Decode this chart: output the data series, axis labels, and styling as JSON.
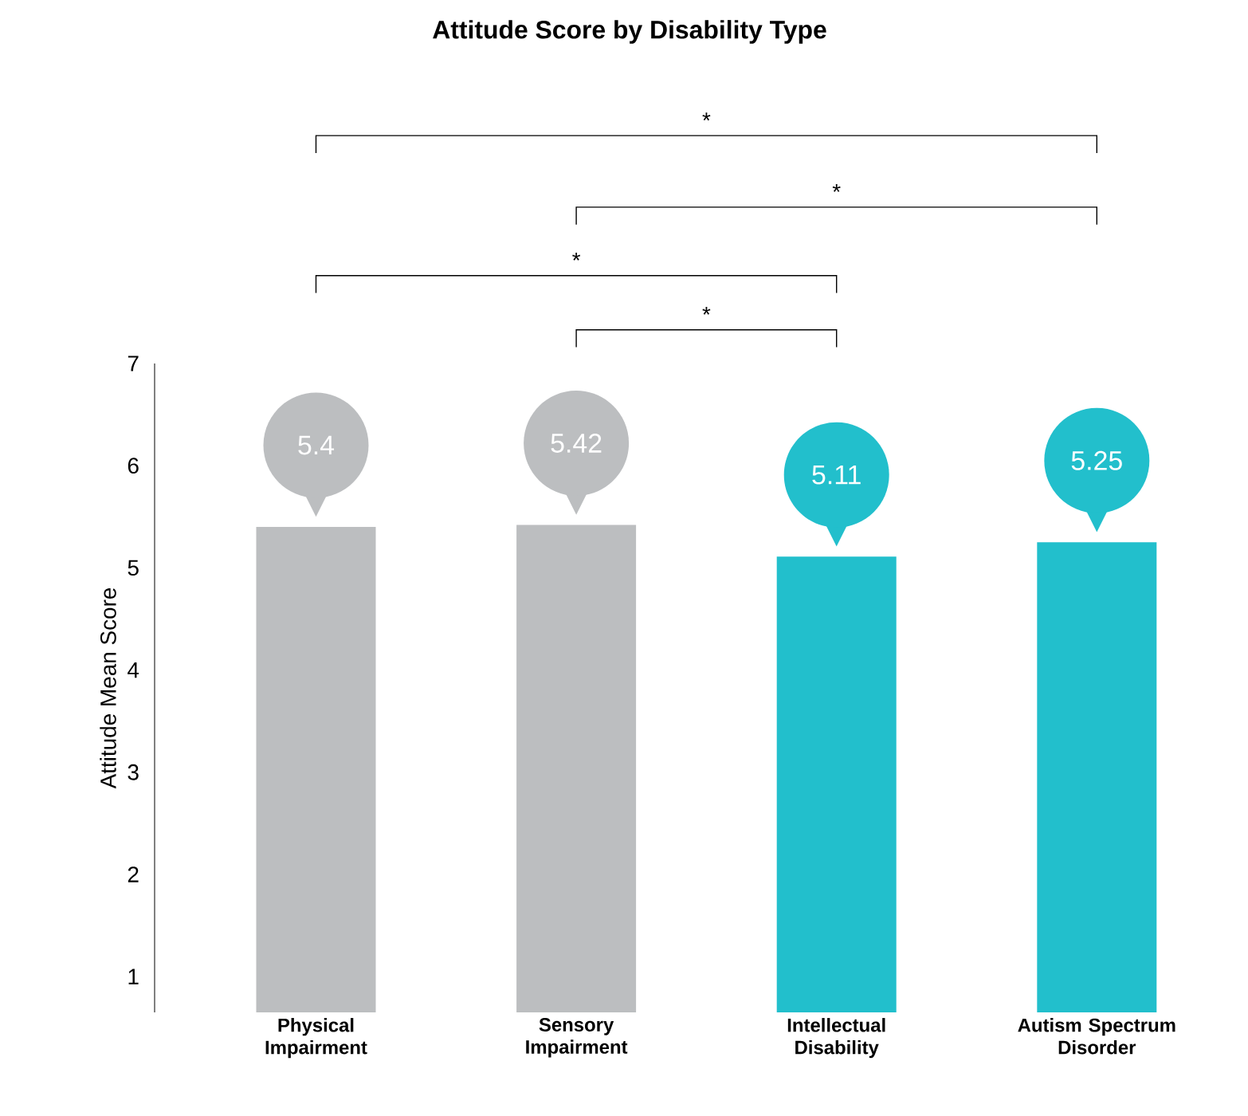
{
  "chart_data": {
    "type": "bar",
    "title": "Attitude Score by Disability Type",
    "ylabel": "Attitude Mean Score",
    "categories": [
      "Physical Impairment",
      "Sensory Impairment",
      "Intellectual Disability",
      "Autism Spectrum Disorder"
    ],
    "values": [
      5.4,
      5.42,
      5.11,
      5.25
    ],
    "colors": [
      "#bcbec0",
      "#bcbec0",
      "#22bfcc",
      "#22bfcc"
    ],
    "ylim": [
      0.65,
      7
    ],
    "yticks": [
      1,
      2,
      3,
      4,
      5,
      6,
      7
    ],
    "data_labels": true,
    "grid": false,
    "annotations": [
      "*",
      "*",
      "*",
      "*"
    ]
  }
}
